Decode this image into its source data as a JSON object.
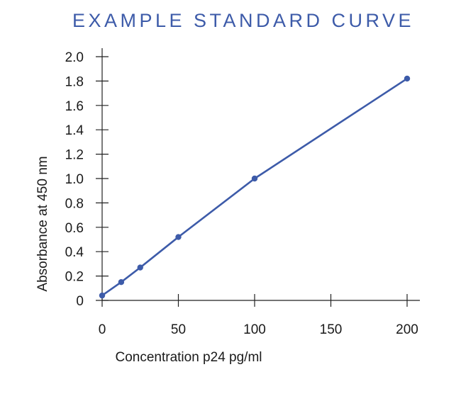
{
  "chart_data": {
    "type": "line",
    "title": "EXAMPLE STANDARD CURVE",
    "xlabel": "Concentration p24 pg/ml",
    "ylabel": "Absorbance at 450 nm",
    "xlim": [
      0,
      210
    ],
    "ylim": [
      0,
      2.0
    ],
    "x_ticks": [
      0,
      50,
      100,
      150,
      200
    ],
    "x_tick_labels": [
      "0",
      "50",
      "100",
      "150",
      "200"
    ],
    "y_ticks": [
      0,
      0.2,
      0.4,
      0.6,
      0.8,
      1.0,
      1.2,
      1.4,
      1.6,
      1.8,
      2.0
    ],
    "y_tick_labels": [
      "0",
      "0.2",
      "0.4",
      "0.6",
      "0.8",
      "1.0",
      "1.2",
      "1.4",
      "1.6",
      "1.8",
      "2.0"
    ],
    "grid": false,
    "colors": {
      "line": "#3d5ba9",
      "title": "#3d5ba9"
    },
    "series": [
      {
        "x": [
          0,
          12.5,
          25,
          50,
          100,
          200
        ],
        "y": [
          0.04,
          0.15,
          0.27,
          0.52,
          1.0,
          1.82
        ]
      }
    ]
  }
}
